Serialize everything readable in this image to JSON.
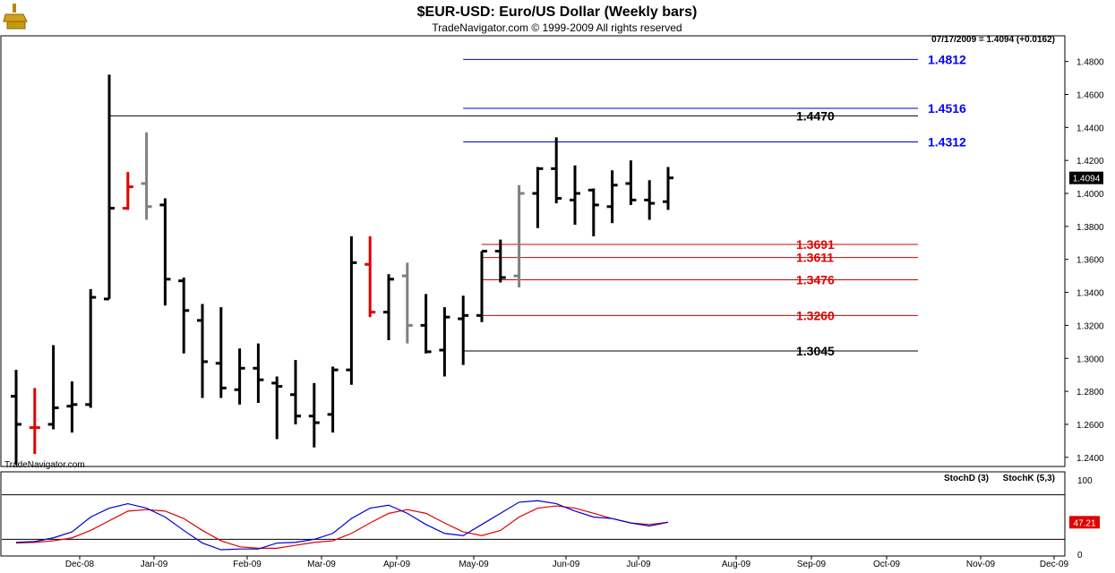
{
  "header": {
    "title": "$EUR-USD:  Euro/US Dollar  (Weekly bars)",
    "subtitle": "TradeNavigator.com © 1999-2009 All rights reserved",
    "quote": "07/17/2009 = 1.4094 (+0.0162)",
    "watermark": "TradeNavigator.com"
  },
  "chart_data": [
    {
      "type": "ohlc",
      "title": "$EUR-USD:  Euro/US Dollar  (Weekly bars)",
      "ylim": [
        1.235,
        1.495
      ],
      "y_ticks": [
        "1.2400",
        "1.2600",
        "1.2800",
        "1.3000",
        "1.3200",
        "1.3400",
        "1.3600",
        "1.3800",
        "1.4000",
        "1.4200",
        "1.4400",
        "1.4600",
        "1.4800"
      ],
      "x_labels": [
        "Dec-08",
        "Jan-09",
        "Feb-09",
        "Mar-09",
        "Apr-09",
        "May-09",
        "Jun-09",
        "Jul-09",
        "Aug-09",
        "Sep-09",
        "Oct-09",
        "Nov-09",
        "Dec-09"
      ],
      "last_price": "1.4094",
      "bars": [
        {
          "o": 1.277,
          "h": 1.293,
          "l": 1.2355,
          "c": 1.26,
          "color": "#000000"
        },
        {
          "o": 1.258,
          "h": 1.282,
          "l": 1.242,
          "c": 1.258,
          "color": "#e00000"
        },
        {
          "o": 1.26,
          "h": 1.308,
          "l": 1.257,
          "c": 1.27,
          "color": "#000000"
        },
        {
          "o": 1.271,
          "h": 1.286,
          "l": 1.255,
          "c": 1.272,
          "color": "#000000"
        },
        {
          "o": 1.272,
          "h": 1.342,
          "l": 1.27,
          "c": 1.337,
          "color": "#000000"
        },
        {
          "o": 1.336,
          "h": 1.472,
          "l": 1.336,
          "c": 1.391,
          "color": "#000000"
        },
        {
          "o": 1.391,
          "h": 1.413,
          "l": 1.39,
          "c": 1.404,
          "color": "#e00000"
        },
        {
          "o": 1.406,
          "h": 1.437,
          "l": 1.384,
          "c": 1.392,
          "color": "#808080"
        },
        {
          "o": 1.393,
          "h": 1.397,
          "l": 1.332,
          "c": 1.348,
          "color": "#000000"
        },
        {
          "o": 1.347,
          "h": 1.349,
          "l": 1.303,
          "c": 1.329,
          "color": "#000000"
        },
        {
          "o": 1.323,
          "h": 1.333,
          "l": 1.276,
          "c": 1.298,
          "color": "#000000"
        },
        {
          "o": 1.297,
          "h": 1.331,
          "l": 1.276,
          "c": 1.282,
          "color": "#000000"
        },
        {
          "o": 1.281,
          "h": 1.306,
          "l": 1.272,
          "c": 1.294,
          "color": "#000000"
        },
        {
          "o": 1.294,
          "h": 1.309,
          "l": 1.273,
          "c": 1.287,
          "color": "#000000"
        },
        {
          "o": 1.285,
          "h": 1.289,
          "l": 1.251,
          "c": 1.283,
          "color": "#000000"
        },
        {
          "o": 1.278,
          "h": 1.299,
          "l": 1.26,
          "c": 1.265,
          "color": "#000000"
        },
        {
          "o": 1.265,
          "h": 1.285,
          "l": 1.246,
          "c": 1.261,
          "color": "#000000"
        },
        {
          "o": 1.266,
          "h": 1.295,
          "l": 1.255,
          "c": 1.293,
          "color": "#000000"
        },
        {
          "o": 1.293,
          "h": 1.374,
          "l": 1.284,
          "c": 1.358,
          "color": "#000000"
        },
        {
          "o": 1.357,
          "h": 1.374,
          "l": 1.325,
          "c": 1.328,
          "color": "#e00000"
        },
        {
          "o": 1.328,
          "h": 1.351,
          "l": 1.311,
          "c": 1.348,
          "color": "#000000"
        },
        {
          "o": 1.35,
          "h": 1.358,
          "l": 1.309,
          "c": 1.32,
          "color": "#808080"
        },
        {
          "o": 1.32,
          "h": 1.339,
          "l": 1.303,
          "c": 1.304,
          "color": "#000000"
        },
        {
          "o": 1.305,
          "h": 1.331,
          "l": 1.289,
          "c": 1.325,
          "color": "#000000"
        },
        {
          "o": 1.324,
          "h": 1.338,
          "l": 1.296,
          "c": 1.326,
          "color": "#000000"
        },
        {
          "o": 1.326,
          "h": 1.365,
          "l": 1.322,
          "c": 1.365,
          "color": "#000000"
        },
        {
          "o": 1.365,
          "h": 1.372,
          "l": 1.346,
          "c": 1.349,
          "color": "#000000"
        },
        {
          "o": 1.35,
          "h": 1.405,
          "l": 1.343,
          "c": 1.4,
          "color": "#808080"
        },
        {
          "o": 1.4,
          "h": 1.416,
          "l": 1.379,
          "c": 1.415,
          "color": "#000000"
        },
        {
          "o": 1.415,
          "h": 1.434,
          "l": 1.394,
          "c": 1.397,
          "color": "#000000"
        },
        {
          "o": 1.396,
          "h": 1.417,
          "l": 1.381,
          "c": 1.4,
          "color": "#000000"
        },
        {
          "o": 1.402,
          "h": 1.403,
          "l": 1.374,
          "c": 1.393,
          "color": "#000000"
        },
        {
          "o": 1.392,
          "h": 1.414,
          "l": 1.382,
          "c": 1.405,
          "color": "#000000"
        },
        {
          "o": 1.406,
          "h": 1.42,
          "l": 1.393,
          "c": 1.396,
          "color": "#000000"
        },
        {
          "o": 1.396,
          "h": 1.408,
          "l": 1.384,
          "c": 1.394,
          "color": "#000000"
        },
        {
          "o": 1.395,
          "h": 1.416,
          "l": 1.39,
          "c": 1.4094,
          "color": "#000000"
        }
      ],
      "levels": [
        {
          "label": "1.4812",
          "value": 1.4812,
          "color": "#0000cc",
          "text_color": "#0000ff",
          "from_bar": 24
        },
        {
          "label": "1.4516",
          "value": 1.4516,
          "color": "#0000cc",
          "text_color": "#0000ff",
          "from_bar": 24
        },
        {
          "label": "1.4470",
          "value": 1.447,
          "color": "#000000",
          "text_color": "#000000",
          "from_bar": 5
        },
        {
          "label": "1.4312",
          "value": 1.4312,
          "color": "#0000cc",
          "text_color": "#0000ff",
          "from_bar": 24
        },
        {
          "label": "1.3691",
          "value": 1.3691,
          "color": "#d00000",
          "text_color": "#e00000",
          "from_bar": 25
        },
        {
          "label": "1.3611",
          "value": 1.3611,
          "color": "#d00000",
          "text_color": "#e00000",
          "from_bar": 25
        },
        {
          "label": "1.3476",
          "value": 1.3476,
          "color": "#d00000",
          "text_color": "#e00000",
          "from_bar": 25
        },
        {
          "label": "1.3260",
          "value": 1.326,
          "color": "#d00000",
          "text_color": "#e00000",
          "from_bar": 25
        },
        {
          "label": "1.3045",
          "value": 1.3045,
          "color": "#000000",
          "text_color": "#000000",
          "from_bar": 24
        }
      ]
    },
    {
      "type": "line",
      "ylim": [
        0,
        100
      ],
      "y_ticks": [
        "100",
        "0"
      ],
      "guide_levels": [
        80,
        20
      ],
      "last_value_label": "47.21",
      "series": [
        {
          "name": "StochD (3)",
          "color": "#e00000",
          "values": [
            15,
            16,
            18,
            22,
            32,
            45,
            58,
            60,
            58,
            48,
            32,
            18,
            10,
            8,
            8,
            12,
            16,
            18,
            28,
            42,
            55,
            60,
            55,
            42,
            30,
            25,
            32,
            50,
            62,
            65,
            62,
            55,
            48,
            42,
            40,
            43
          ]
        },
        {
          "name": "StochK (5,3)",
          "color": "#0000cc",
          "values": [
            16,
            17,
            22,
            30,
            50,
            62,
            68,
            62,
            50,
            32,
            15,
            6,
            7,
            7,
            15,
            16,
            20,
            28,
            48,
            62,
            66,
            55,
            40,
            28,
            25,
            40,
            55,
            70,
            72,
            68,
            58,
            50,
            48,
            42,
            38,
            43
          ]
        }
      ]
    }
  ]
}
